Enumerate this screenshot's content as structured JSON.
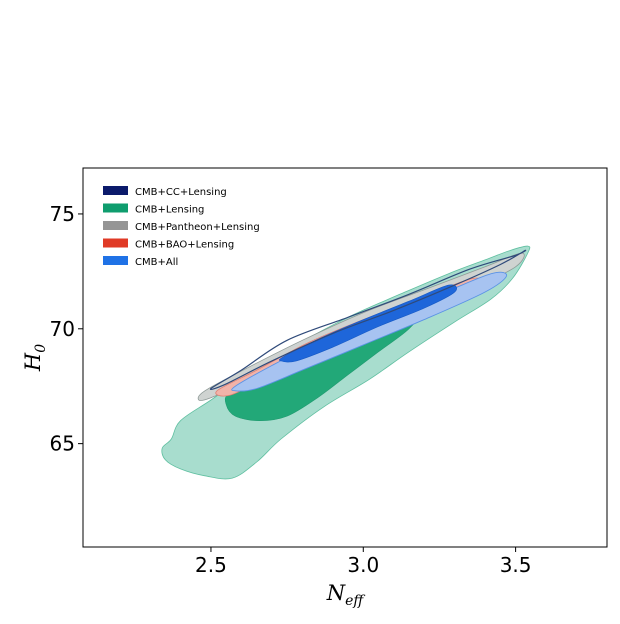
{
  "chart_data": {
    "type": "contour",
    "title": "",
    "xlabel": {
      "main": "N",
      "sub": "eff"
    },
    "ylabel": {
      "main": "H",
      "sub": "0"
    },
    "xlim": [
      2.08,
      3.8
    ],
    "ylim": [
      60.5,
      77
    ],
    "xticks": [
      2.5,
      3.0,
      3.5
    ],
    "xtick_labels": [
      "2.5",
      "3.0",
      "3.5"
    ],
    "yticks": [
      65,
      70,
      75
    ],
    "ytick_labels": [
      "65",
      "70",
      "75"
    ],
    "grid": false,
    "legend_position": "top-left",
    "series": [
      {
        "name": "CMB+CC+Lensing",
        "color": "#0b1a6b",
        "contours": [
          {
            "level": "95%",
            "fill": "none",
            "stroke": "#2f4a7a",
            "stroke_width": 1.2,
            "points": [
              [
                2.5,
                67.4
              ],
              [
                2.6,
                68.2
              ],
              [
                2.75,
                69.5
              ],
              [
                2.95,
                70.5
              ],
              [
                3.15,
                71.5
              ],
              [
                3.35,
                72.6
              ],
              [
                3.5,
                73.2
              ],
              [
                3.53,
                73.4
              ],
              [
                3.45,
                72.8
              ],
              [
                3.3,
                71.9
              ],
              [
                3.1,
                70.8
              ],
              [
                2.9,
                69.8
              ],
              [
                2.7,
                68.6
              ],
              [
                2.55,
                67.6
              ]
            ]
          }
        ]
      },
      {
        "name": "CMB+Lensing",
        "color": "#0f9d6e",
        "contours": [
          {
            "level": "95%",
            "fill": "#a8ddce",
            "stroke": "#5fbfa0",
            "stroke_width": 0.8,
            "points": [
              [
                2.37,
                65.2
              ],
              [
                2.4,
                66.0
              ],
              [
                2.5,
                66.9
              ],
              [
                2.62,
                68.0
              ],
              [
                2.78,
                69.3
              ],
              [
                2.95,
                70.5
              ],
              [
                3.12,
                71.5
              ],
              [
                3.28,
                72.4
              ],
              [
                3.4,
                73.0
              ],
              [
                3.48,
                73.4
              ],
              [
                3.54,
                73.6
              ],
              [
                3.54,
                73.3
              ],
              [
                3.49,
                72.2
              ],
              [
                3.42,
                71.3
              ],
              [
                3.3,
                70.3
              ],
              [
                3.15,
                69.0
              ],
              [
                3.02,
                67.8
              ],
              [
                2.87,
                66.6
              ],
              [
                2.73,
                65.2
              ],
              [
                2.65,
                64.2
              ],
              [
                2.57,
                63.5
              ],
              [
                2.48,
                63.6
              ],
              [
                2.4,
                63.9
              ],
              [
                2.35,
                64.3
              ],
              [
                2.34,
                64.8
              ]
            ]
          },
          {
            "level": "68%",
            "fill": "#22a878",
            "stroke": "#1f9a6f",
            "stroke_width": 0.6,
            "points": [
              [
                2.56,
                67.2
              ],
              [
                2.66,
                67.8
              ],
              [
                2.8,
                68.6
              ],
              [
                2.97,
                69.7
              ],
              [
                3.12,
                70.6
              ],
              [
                3.2,
                70.9
              ],
              [
                3.15,
                70.0
              ],
              [
                3.05,
                69.0
              ],
              [
                2.95,
                68.0
              ],
              [
                2.85,
                67.0
              ],
              [
                2.75,
                66.2
              ],
              [
                2.66,
                66.0
              ],
              [
                2.58,
                66.2
              ],
              [
                2.55,
                66.7
              ]
            ]
          }
        ]
      },
      {
        "name": "CMB+Pantheon+Lensing",
        "color": "#959595",
        "contours": [
          {
            "level": "95%",
            "fill": "#cfd3d1",
            "stroke": "#8e9a97",
            "stroke_width": 0.8,
            "points": [
              [
                2.48,
                67.3
              ],
              [
                2.62,
                68.3
              ],
              [
                2.8,
                69.5
              ],
              [
                3.0,
                70.7
              ],
              [
                3.2,
                71.7
              ],
              [
                3.4,
                72.7
              ],
              [
                3.52,
                73.3
              ],
              [
                3.5,
                72.7
              ],
              [
                3.35,
                71.7
              ],
              [
                3.15,
                70.6
              ],
              [
                2.95,
                69.5
              ],
              [
                2.75,
                68.5
              ],
              [
                2.6,
                67.6
              ],
              [
                2.5,
                67.0
              ],
              [
                2.46,
                66.9
              ]
            ]
          }
        ]
      },
      {
        "name": "CMB+BAO+Lensing",
        "color": "#e03a26",
        "contours": [
          {
            "level": "95%",
            "fill": "#f1b3a9",
            "stroke": "#e07f71",
            "stroke_width": 0.8,
            "points": [
              [
                2.52,
                67.3
              ],
              [
                2.65,
                68.2
              ],
              [
                2.82,
                69.4
              ],
              [
                3.0,
                70.4
              ],
              [
                3.2,
                71.4
              ],
              [
                3.36,
                72.2
              ],
              [
                3.38,
                71.8
              ],
              [
                3.25,
                70.8
              ],
              [
                3.05,
                69.8
              ],
              [
                2.85,
                68.7
              ],
              [
                2.68,
                67.8
              ],
              [
                2.56,
                67.1
              ]
            ]
          },
          {
            "level": "68%",
            "fill": "#e98c7d",
            "stroke": "#d86555",
            "stroke_width": 0.6,
            "points": [
              [
                2.72,
                68.5
              ],
              [
                2.85,
                69.2
              ],
              [
                3.0,
                70.0
              ],
              [
                3.12,
                70.6
              ],
              [
                3.15,
                70.2
              ],
              [
                3.03,
                69.5
              ],
              [
                2.9,
                68.8
              ],
              [
                2.76,
                68.2
              ]
            ]
          }
        ]
      },
      {
        "name": "CMB+All",
        "color": "#1f72e6",
        "contours": [
          {
            "level": "95%",
            "fill": "#a7c3f1",
            "stroke": "#5a92e6",
            "stroke_width": 0.9,
            "points": [
              [
                2.58,
                67.5
              ],
              [
                2.7,
                68.4
              ],
              [
                2.88,
                69.6
              ],
              [
                3.05,
                70.5
              ],
              [
                3.25,
                71.5
              ],
              [
                3.42,
                72.4
              ],
              [
                3.47,
                72.3
              ],
              [
                3.4,
                71.6
              ],
              [
                3.2,
                70.4
              ],
              [
                3.0,
                69.3
              ],
              [
                2.8,
                68.2
              ],
              [
                2.65,
                67.4
              ],
              [
                2.58,
                67.3
              ]
            ]
          },
          {
            "level": "68%",
            "fill": "#1e66da",
            "stroke": "#1559c5",
            "stroke_width": 0.6,
            "points": [
              [
                2.74,
                68.8
              ],
              [
                2.86,
                69.6
              ],
              [
                3.0,
                70.4
              ],
              [
                3.15,
                71.2
              ],
              [
                3.28,
                71.9
              ],
              [
                3.3,
                71.6
              ],
              [
                3.2,
                70.9
              ],
              [
                3.05,
                70.1
              ],
              [
                2.9,
                69.2
              ],
              [
                2.78,
                68.6
              ],
              [
                2.73,
                68.6
              ]
            ]
          }
        ]
      }
    ]
  }
}
